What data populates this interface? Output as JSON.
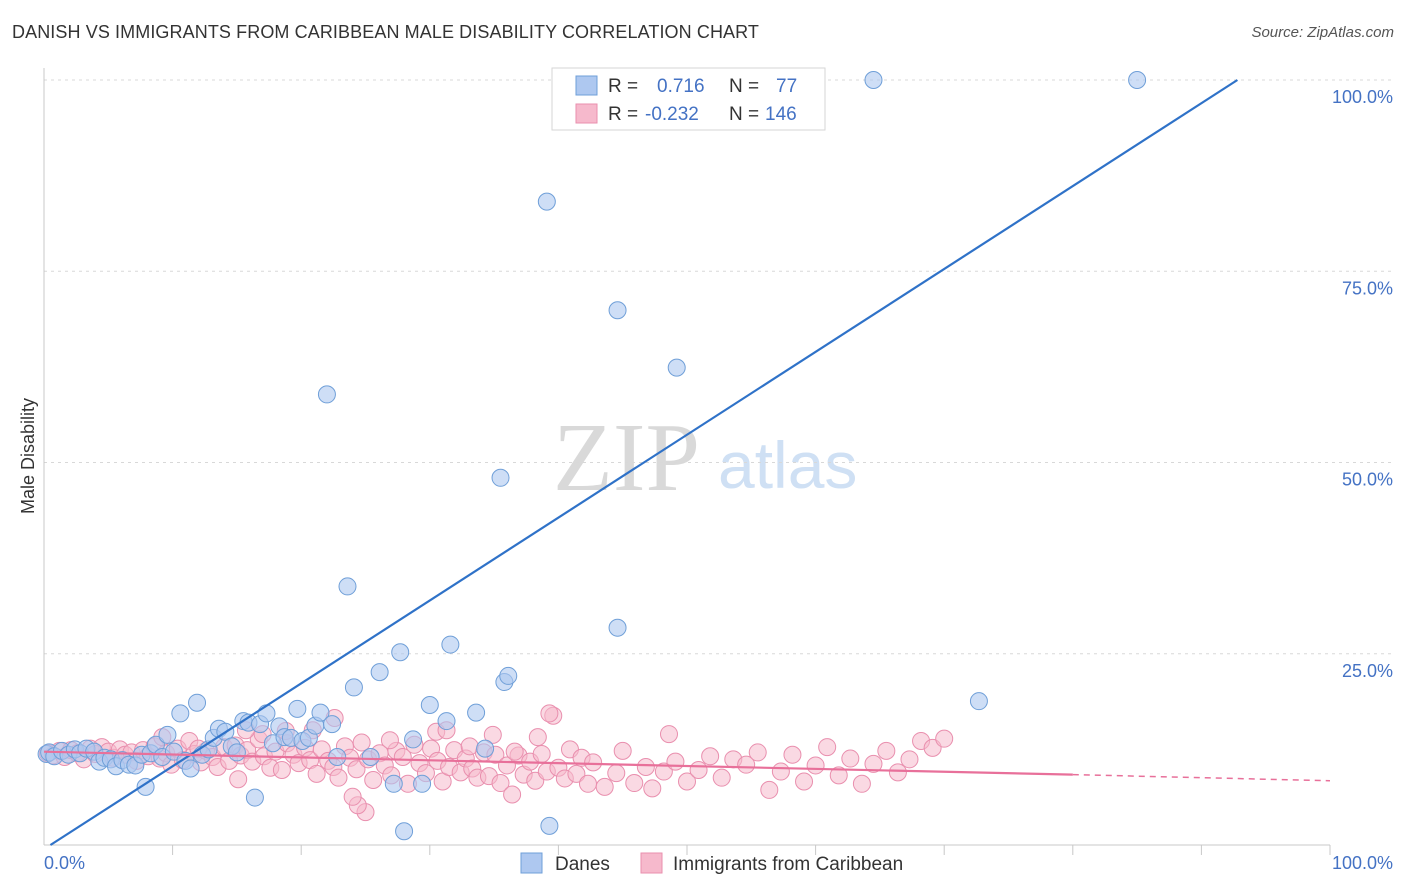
{
  "title": "DANISH VS IMMIGRANTS FROM CARIBBEAN MALE DISABILITY CORRELATION CHART",
  "source": "Source: ZipAtlas.com",
  "watermark": {
    "zip": "ZIP",
    "atlas": "atlas"
  },
  "colors": {
    "danes_fill": "#aec8f0",
    "danes_stroke": "#6f9fd8",
    "danes_line": "#2f72c8",
    "carib_fill": "#f6b9cc",
    "carib_stroke": "#e98fae",
    "carib_line": "#e8709a",
    "tick_text": "#4472c4",
    "grid": "#d8d8d8"
  },
  "legend_box": {
    "r_label": "R =",
    "n_label": "N =",
    "rows": [
      {
        "series": "Danes",
        "r": "0.716",
        "n": "77"
      },
      {
        "series": "Immigrants from Caribbean",
        "r": "-0.232",
        "n": "146"
      }
    ]
  },
  "chart_data": {
    "type": "scatter",
    "title": "DANISH VS IMMIGRANTS FROM CARIBBEAN MALE DISABILITY CORRELATION CHART",
    "xlabel": "",
    "ylabel": "Male Disability",
    "xlim": [
      0,
      100
    ],
    "ylim": [
      0,
      100
    ],
    "x_tick_labels": [
      "0.0%",
      "100.0%"
    ],
    "y_ticks": [
      25,
      50,
      75,
      100
    ],
    "y_tick_labels": [
      "25.0%",
      "50.0%",
      "75.0%",
      "100.0%"
    ],
    "grid": true,
    "legend_position": "bottom",
    "series": [
      {
        "name": "Danes",
        "r": 0.716,
        "n": 77,
        "trend": {
          "x": [
            0.5,
            92.8
          ],
          "y": [
            0.0,
            100.0
          ]
        },
        "points": [
          [
            0.2,
            11.9
          ],
          [
            0.4,
            12.1
          ],
          [
            0.8,
            11.6
          ],
          [
            1.4,
            12.3
          ],
          [
            1.9,
            11.8
          ],
          [
            2.4,
            12.5
          ],
          [
            2.8,
            12.0
          ],
          [
            3.3,
            12.6
          ],
          [
            3.9,
            12.2
          ],
          [
            4.3,
            10.9
          ],
          [
            4.7,
            11.4
          ],
          [
            5.2,
            11.2
          ],
          [
            5.6,
            10.3
          ],
          [
            6.1,
            11.1
          ],
          [
            6.6,
            10.5
          ],
          [
            7.1,
            10.4
          ],
          [
            7.6,
            11.8
          ],
          [
            7.9,
            7.6
          ],
          [
            8.3,
            12.0
          ],
          [
            8.7,
            13.1
          ],
          [
            9.2,
            11.5
          ],
          [
            9.6,
            14.4
          ],
          [
            10.1,
            12.2
          ],
          [
            10.6,
            17.2
          ],
          [
            11.0,
            11.0
          ],
          [
            11.4,
            10.0
          ],
          [
            11.9,
            18.6
          ],
          [
            12.3,
            11.8
          ],
          [
            12.8,
            12.5
          ],
          [
            13.2,
            14.0
          ],
          [
            13.6,
            15.2
          ],
          [
            14.1,
            14.8
          ],
          [
            14.6,
            12.9
          ],
          [
            15.0,
            12.1
          ],
          [
            15.5,
            16.2
          ],
          [
            15.9,
            16.0
          ],
          [
            16.4,
            6.2
          ],
          [
            16.8,
            15.8
          ],
          [
            17.3,
            17.2
          ],
          [
            17.8,
            13.3
          ],
          [
            18.3,
            15.5
          ],
          [
            18.7,
            14.1
          ],
          [
            19.2,
            14.0
          ],
          [
            19.7,
            17.8
          ],
          [
            20.1,
            13.6
          ],
          [
            20.6,
            14.0
          ],
          [
            21.1,
            15.6
          ],
          [
            21.5,
            17.3
          ],
          [
            22.0,
            58.9
          ],
          [
            22.4,
            15.8
          ],
          [
            22.8,
            11.5
          ],
          [
            23.6,
            33.8
          ],
          [
            24.1,
            20.6
          ],
          [
            25.4,
            11.5
          ],
          [
            26.1,
            22.6
          ],
          [
            27.2,
            8.0
          ],
          [
            27.7,
            25.2
          ],
          [
            28.0,
            1.8
          ],
          [
            28.7,
            13.8
          ],
          [
            29.4,
            8.0
          ],
          [
            30.0,
            18.3
          ],
          [
            31.3,
            16.2
          ],
          [
            31.6,
            26.2
          ],
          [
            33.6,
            17.3
          ],
          [
            34.3,
            12.6
          ],
          [
            35.5,
            48.0
          ],
          [
            35.8,
            21.3
          ],
          [
            36.1,
            22.1
          ],
          [
            39.1,
            84.1
          ],
          [
            39.3,
            2.5
          ],
          [
            44.6,
            69.9
          ],
          [
            44.6,
            28.4
          ],
          [
            49.2,
            62.4
          ],
          [
            54.1,
            100.0
          ],
          [
            64.5,
            100.0
          ],
          [
            72.7,
            18.8
          ],
          [
            85.0,
            100.0
          ]
        ]
      },
      {
        "name": "Immigrants from Caribbean",
        "r": -0.232,
        "n": 146,
        "trend": {
          "x": [
            0.0,
            80.0,
            100.0
          ],
          "y": [
            12.2,
            9.2,
            8.4
          ]
        },
        "points": [
          [
            0.3,
            12.0
          ],
          [
            0.7,
            11.7
          ],
          [
            1.2,
            12.3
          ],
          [
            1.6,
            11.5
          ],
          [
            2.1,
            12.4
          ],
          [
            2.6,
            12.0
          ],
          [
            3.1,
            11.2
          ],
          [
            3.6,
            12.6
          ],
          [
            4.0,
            11.9
          ],
          [
            4.5,
            12.8
          ],
          [
            5.0,
            12.2
          ],
          [
            5.4,
            11.4
          ],
          [
            5.9,
            12.5
          ],
          [
            6.3,
            11.8
          ],
          [
            6.8,
            12.1
          ],
          [
            7.2,
            11.0
          ],
          [
            7.7,
            12.4
          ],
          [
            8.1,
            11.6
          ],
          [
            8.6,
            12.9
          ],
          [
            9.0,
            11.3
          ],
          [
            9.5,
            12.0
          ],
          [
            9.9,
            10.5
          ],
          [
            10.4,
            12.6
          ],
          [
            10.8,
            11.1
          ],
          [
            11.3,
            13.6
          ],
          [
            11.7,
            11.9
          ],
          [
            12.2,
            10.8
          ],
          [
            12.6,
            12.3
          ],
          [
            13.1,
            11.5
          ],
          [
            13.5,
            10.2
          ],
          [
            14.0,
            12.8
          ],
          [
            14.4,
            11.0
          ],
          [
            14.9,
            13.0
          ],
          [
            15.3,
            11.7
          ],
          [
            15.1,
            8.6
          ],
          [
            15.8,
            12.4
          ],
          [
            16.2,
            10.9
          ],
          [
            16.7,
            13.8
          ],
          [
            17.1,
            11.6
          ],
          [
            17.6,
            10.1
          ],
          [
            18.0,
            12.2
          ],
          [
            18.5,
            9.8
          ],
          [
            18.9,
            13.3
          ],
          [
            19.4,
            11.8
          ],
          [
            19.8,
            10.7
          ],
          [
            20.3,
            12.7
          ],
          [
            20.7,
            11.1
          ],
          [
            21.2,
            9.3
          ],
          [
            21.6,
            12.5
          ],
          [
            22.1,
            11.0
          ],
          [
            22.5,
            10.2
          ],
          [
            22.9,
            8.8
          ],
          [
            23.4,
            12.9
          ],
          [
            23.8,
            11.4
          ],
          [
            24.3,
            9.9
          ],
          [
            24.7,
            13.4
          ],
          [
            25.2,
            11.2
          ],
          [
            25.6,
            8.5
          ],
          [
            26.1,
            12.0
          ],
          [
            26.5,
            10.4
          ],
          [
            27.0,
            9.1
          ],
          [
            27.4,
            12.3
          ],
          [
            27.9,
            11.5
          ],
          [
            28.3,
            8.0
          ],
          [
            28.8,
            13.1
          ],
          [
            29.2,
            10.7
          ],
          [
            29.7,
            9.4
          ],
          [
            30.1,
            12.6
          ],
          [
            30.6,
            11.0
          ],
          [
            31.0,
            8.3
          ],
          [
            31.5,
            10.2
          ],
          [
            31.9,
            12.4
          ],
          [
            32.4,
            9.5
          ],
          [
            32.8,
            11.3
          ],
          [
            33.3,
            10.0
          ],
          [
            33.7,
            8.8
          ],
          [
            34.2,
            12.1
          ],
          [
            34.6,
            9.0
          ],
          [
            35.1,
            11.8
          ],
          [
            35.5,
            8.1
          ],
          [
            36.0,
            10.4
          ],
          [
            36.4,
            6.6
          ],
          [
            36.9,
            11.7
          ],
          [
            37.3,
            9.2
          ],
          [
            37.8,
            10.9
          ],
          [
            38.2,
            8.4
          ],
          [
            38.7,
            11.9
          ],
          [
            39.1,
            9.6
          ],
          [
            39.6,
            16.9
          ],
          [
            40.0,
            10.1
          ],
          [
            40.5,
            8.7
          ],
          [
            40.9,
            12.5
          ],
          [
            41.4,
            9.3
          ],
          [
            41.8,
            11.4
          ],
          [
            42.3,
            8.0
          ],
          [
            42.7,
            10.8
          ],
          [
            43.6,
            7.6
          ],
          [
            44.5,
            9.4
          ],
          [
            45.0,
            12.3
          ],
          [
            45.9,
            8.1
          ],
          [
            46.8,
            10.2
          ],
          [
            47.3,
            7.4
          ],
          [
            48.2,
            9.6
          ],
          [
            48.6,
            14.5
          ],
          [
            49.1,
            10.9
          ],
          [
            50.0,
            8.3
          ],
          [
            50.9,
            9.8
          ],
          [
            51.8,
            11.6
          ],
          [
            52.7,
            8.8
          ],
          [
            53.6,
            11.2
          ],
          [
            54.6,
            10.5
          ],
          [
            55.5,
            12.1
          ],
          [
            56.4,
            7.2
          ],
          [
            57.3,
            9.6
          ],
          [
            58.2,
            11.8
          ],
          [
            59.1,
            8.3
          ],
          [
            60.0,
            10.4
          ],
          [
            60.9,
            12.8
          ],
          [
            61.8,
            9.1
          ],
          [
            62.7,
            11.3
          ],
          [
            63.6,
            8.0
          ],
          [
            64.5,
            10.6
          ],
          [
            65.5,
            12.3
          ],
          [
            66.4,
            9.5
          ],
          [
            67.3,
            11.2
          ],
          [
            68.2,
            13.6
          ],
          [
            69.1,
            12.7
          ],
          [
            70.0,
            13.9
          ],
          [
            22.6,
            16.6
          ],
          [
            25.0,
            4.3
          ],
          [
            24.4,
            5.2
          ],
          [
            24.0,
            6.3
          ],
          [
            26.9,
            13.7
          ],
          [
            30.5,
            14.8
          ],
          [
            31.3,
            15.0
          ],
          [
            33.1,
            12.9
          ],
          [
            34.9,
            14.4
          ],
          [
            36.6,
            12.2
          ],
          [
            38.4,
            14.1
          ],
          [
            20.9,
            15.0
          ],
          [
            18.8,
            14.9
          ],
          [
            17.0,
            14.5
          ],
          [
            15.7,
            15.0
          ],
          [
            39.3,
            17.2
          ],
          [
            12.0,
            12.6
          ],
          [
            9.2,
            14.1
          ]
        ]
      }
    ]
  }
}
